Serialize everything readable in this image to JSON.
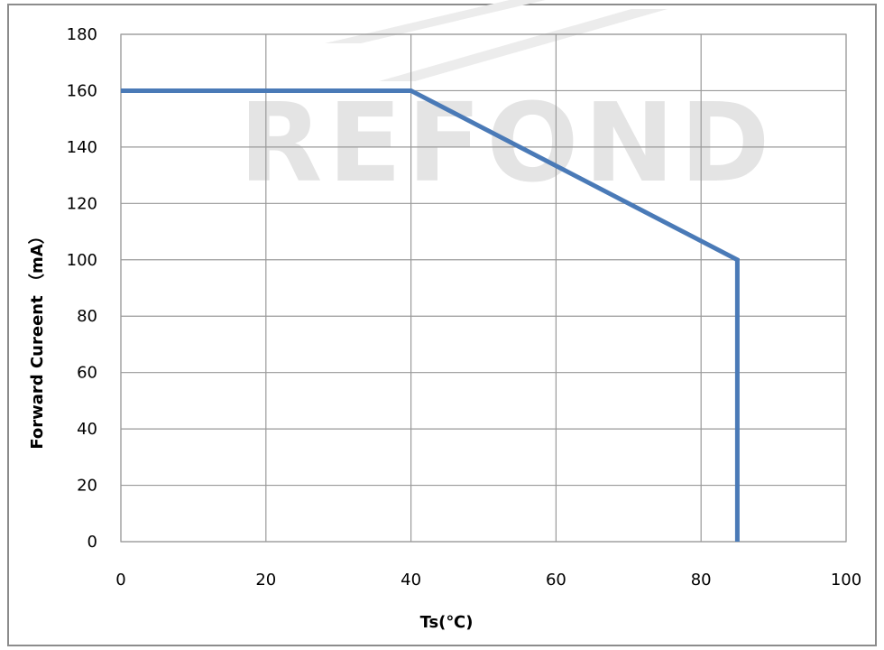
{
  "chart_data": {
    "type": "line",
    "watermark": "REFOND",
    "xlabel": "Ts(℃)",
    "ylabel": "Forward Cureent （mA）",
    "xlim": [
      0,
      100
    ],
    "ylim": [
      0,
      180
    ],
    "xticks": [
      0,
      20,
      40,
      60,
      80,
      100
    ],
    "yticks": [
      0,
      20,
      40,
      60,
      80,
      100,
      120,
      140,
      160,
      180
    ],
    "grid": true,
    "series": [
      {
        "color": "#4a7ab7",
        "x": [
          0,
          40,
          85,
          85
        ],
        "y": [
          160,
          160,
          100,
          0
        ]
      }
    ]
  }
}
